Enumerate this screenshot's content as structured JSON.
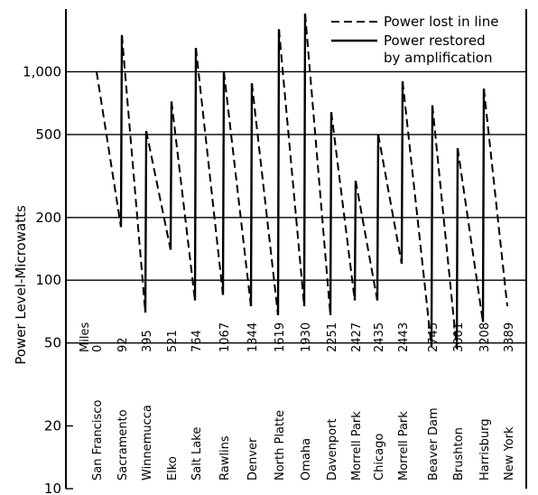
{
  "chart_data": {
    "type": "line",
    "title": "",
    "xlabel": "",
    "ylabel": "Power Level-Microwatts",
    "y_scale": "log",
    "ylim": [
      10,
      2000
    ],
    "y_ticks": [
      10,
      20,
      50,
      100,
      200,
      500,
      1000
    ],
    "y_tick_labels": [
      "10",
      "20",
      "50",
      "100",
      "200",
      "500",
      "1,000"
    ],
    "grid": "horizontal",
    "legend_position": "top-right",
    "miles_label": "Miles",
    "stations": [
      {
        "name": "San Francisco",
        "miles": "0"
      },
      {
        "name": "Sacramento",
        "miles": "92"
      },
      {
        "name": "Winnemucca",
        "miles": "395"
      },
      {
        "name": "Elko",
        "miles": "521"
      },
      {
        "name": "Salt Lake",
        "miles": "764"
      },
      {
        "name": "Rawlins",
        "miles": "1067"
      },
      {
        "name": "Denver",
        "miles": "1344"
      },
      {
        "name": "North Platte",
        "miles": "1619"
      },
      {
        "name": "Omaha",
        "miles": "1930"
      },
      {
        "name": "Davenport",
        "miles": "2251"
      },
      {
        "name": "Morrell Park",
        "miles": "2427"
      },
      {
        "name": "Chicago",
        "miles": "2435"
      },
      {
        "name": "Morrell Park",
        "miles": "2443"
      },
      {
        "name": "Beaver Dam",
        "miles": "2745"
      },
      {
        "name": "Brushton",
        "miles": "3001"
      },
      {
        "name": "Harrisburg",
        "miles": "3208"
      },
      {
        "name": "New York",
        "miles": "3389"
      }
    ],
    "series": [
      {
        "name": "Power lost in line",
        "style": "dashed",
        "segments": [
          {
            "from_station": 0,
            "to_station": 1,
            "from": 1000,
            "to": 180
          },
          {
            "from_station": 1,
            "to_station": 2,
            "from": 1500,
            "to": 70
          },
          {
            "from_station": 2,
            "to_station": 3,
            "from": 520,
            "to": 140
          },
          {
            "from_station": 3,
            "to_station": 4,
            "from": 720,
            "to": 80
          },
          {
            "from_station": 4,
            "to_station": 5,
            "from": 1300,
            "to": 85
          },
          {
            "from_station": 5,
            "to_station": 6,
            "from": 1000,
            "to": 75
          },
          {
            "from_station": 6,
            "to_station": 7,
            "from": 880,
            "to": 68
          },
          {
            "from_station": 7,
            "to_station": 8,
            "from": 1600,
            "to": 75
          },
          {
            "from_station": 8,
            "to_station": 9,
            "from": 1900,
            "to": 68
          },
          {
            "from_station": 9,
            "to_station": 10,
            "from": 640,
            "to": 80
          },
          {
            "from_station": 10,
            "to_station": 11,
            "from": 300,
            "to": 80
          },
          {
            "from_station": 11,
            "to_station": 12,
            "from": 500,
            "to": 120
          },
          {
            "from_station": 12,
            "to_station": 13,
            "from": 900,
            "to": 48
          },
          {
            "from_station": 13,
            "to_station": 14,
            "from": 690,
            "to": 47
          },
          {
            "from_station": 14,
            "to_station": 15,
            "from": 430,
            "to": 63
          },
          {
            "from_station": 15,
            "to_station": 16,
            "from": 830,
            "to": 75
          }
        ]
      },
      {
        "name": "Power restored by amplification",
        "style": "solid",
        "points": [
          {
            "station": 1,
            "from": 180,
            "to": 1500
          },
          {
            "station": 2,
            "from": 70,
            "to": 520
          },
          {
            "station": 3,
            "from": 140,
            "to": 720
          },
          {
            "station": 4,
            "from": 80,
            "to": 1300
          },
          {
            "station": 5,
            "from": 85,
            "to": 1000
          },
          {
            "station": 6,
            "from": 75,
            "to": 880
          },
          {
            "station": 7,
            "from": 68,
            "to": 1600
          },
          {
            "station": 8,
            "from": 75,
            "to": 1900
          },
          {
            "station": 9,
            "from": 68,
            "to": 640
          },
          {
            "station": 10,
            "from": 80,
            "to": 300
          },
          {
            "station": 11,
            "from": 80,
            "to": 500
          },
          {
            "station": 12,
            "from": 120,
            "to": 900
          },
          {
            "station": 13,
            "from": 48,
            "to": 690
          },
          {
            "station": 14,
            "from": 47,
            "to": 430
          },
          {
            "station": 15,
            "from": 63,
            "to": 830
          }
        ]
      }
    ],
    "legend": [
      {
        "line1": "Power lost in line",
        "line2": ""
      },
      {
        "line1": "Power restored",
        "line2": "by amplification"
      }
    ]
  }
}
